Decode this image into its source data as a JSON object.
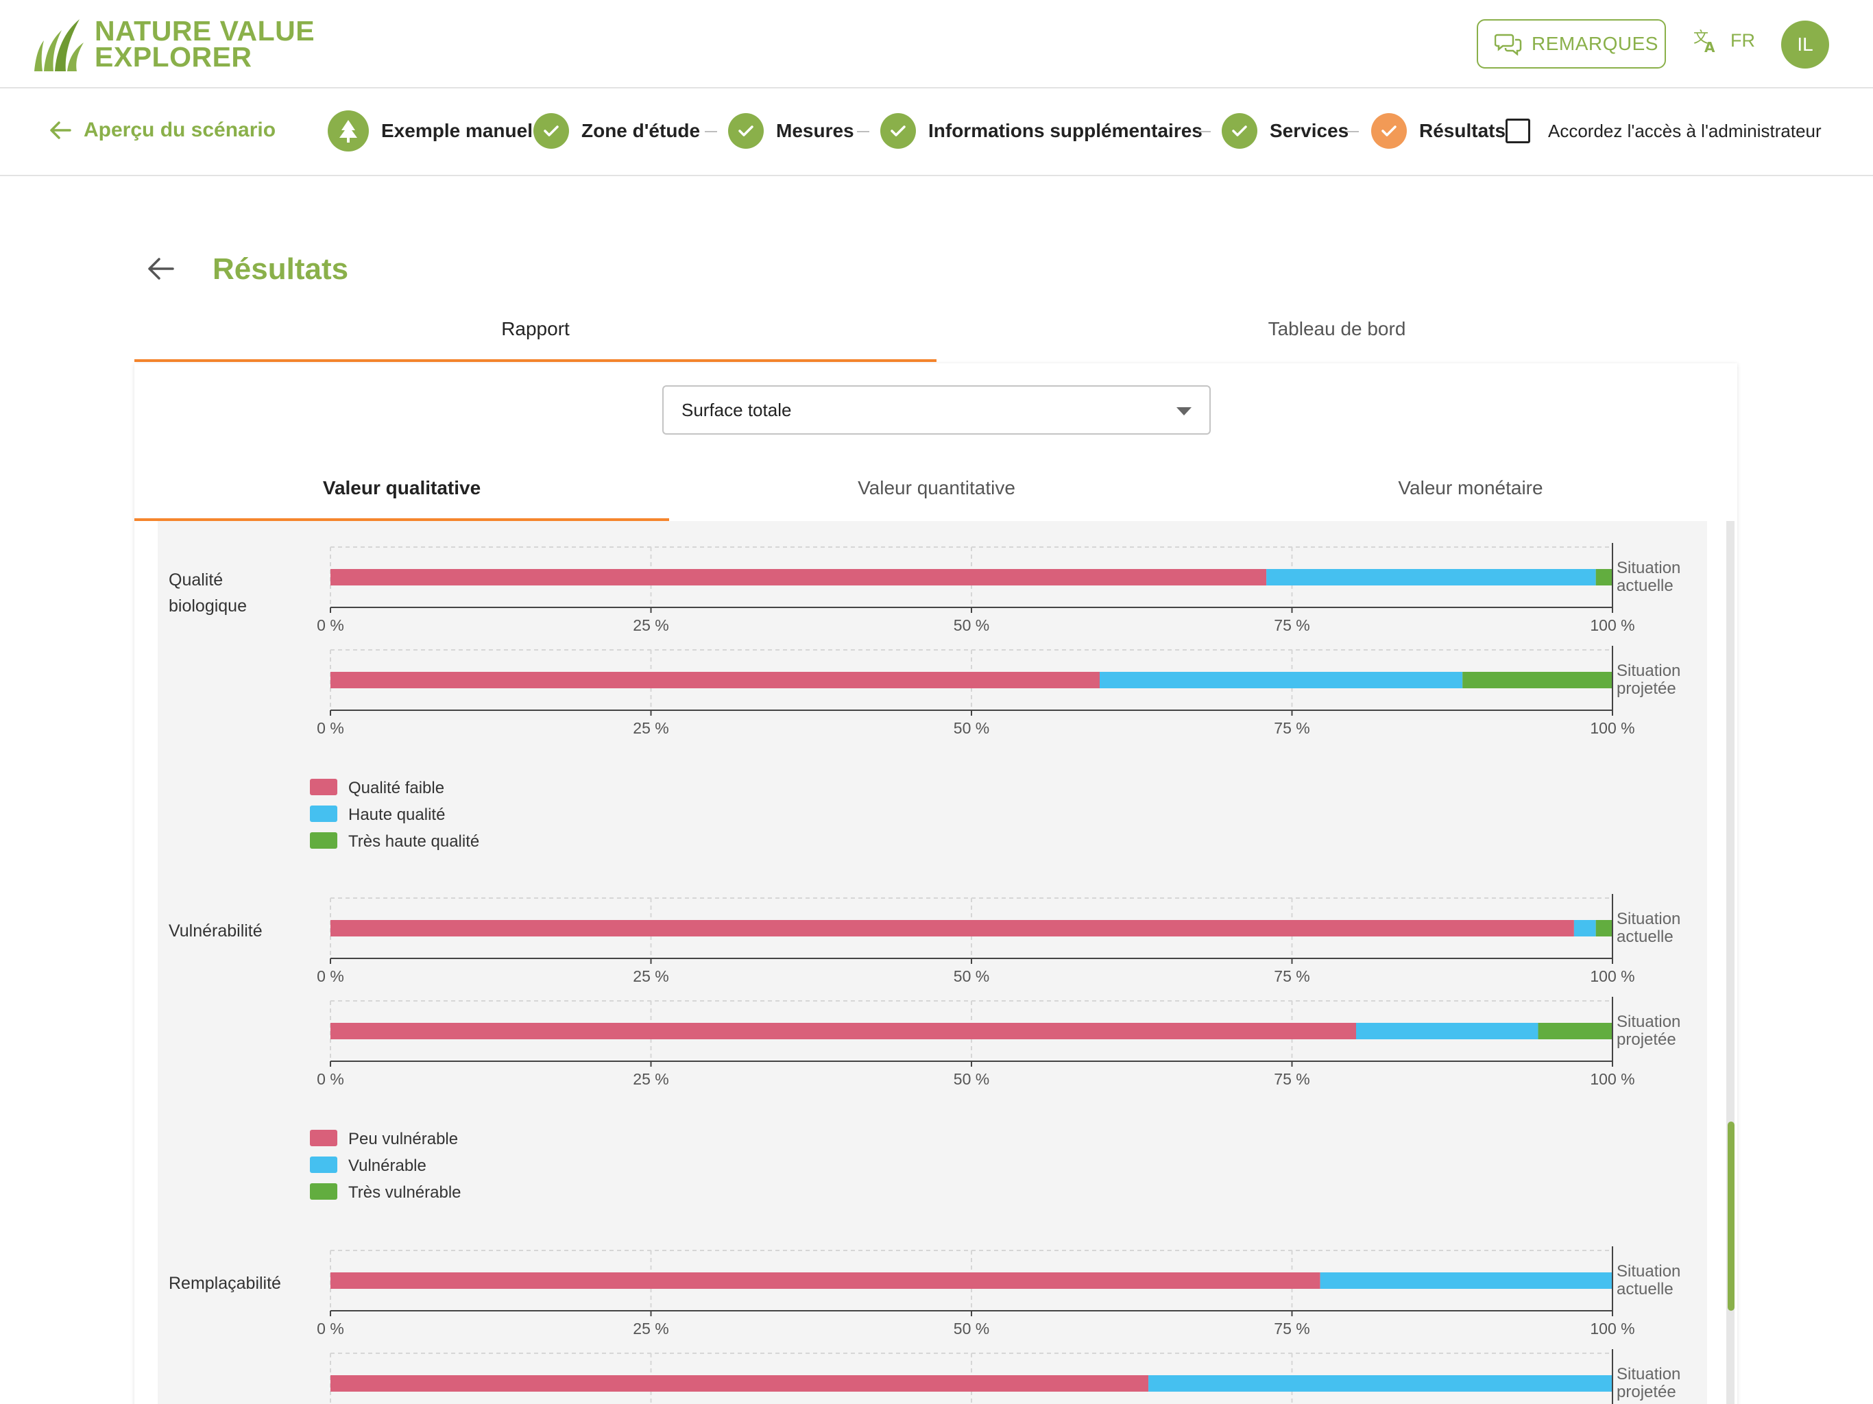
{
  "header": {
    "logo_line1": "NATURE VALUE",
    "logo_line2": "EXPLORER",
    "remarques_label": "REMARQUES",
    "language": "FR",
    "avatar_initials": "IL"
  },
  "stepper": {
    "back_label": "Aperçu du scénario",
    "steps": [
      {
        "label": "Exemple manuel",
        "state": "tree"
      },
      {
        "label": "Zone d'étude",
        "state": "done"
      },
      {
        "label": "Mesures",
        "state": "done"
      },
      {
        "label": "Informations supplémentaires",
        "state": "done"
      },
      {
        "label": "Services",
        "state": "done"
      },
      {
        "label": "Résultats",
        "state": "current"
      }
    ],
    "admin_label": "Accordez l'accès à l'administrateur"
  },
  "page": {
    "title": "Résultats",
    "tabs": [
      "Rapport",
      "Tableau de bord"
    ],
    "active_tab": "Rapport",
    "select_value": "Surface totale",
    "subtabs": [
      "Valeur qualitative",
      "Valeur quantitative",
      "Valeur monétaire"
    ],
    "active_subtab": "Valeur qualitative"
  },
  "colors": {
    "accent": "#8ab04a",
    "orange": "#f5852d",
    "red": "#d9607a",
    "blue": "#45c0f0",
    "green": "#62ad3f"
  },
  "chart_data": [
    {
      "type": "bar",
      "title": "Qualité biologique",
      "orientation": "horizontal-stacked",
      "categories": [
        "Situation actuelle",
        "Situation projetée"
      ],
      "series": [
        {
          "name": "Qualité faible",
          "values": [
            73,
            60
          ]
        },
        {
          "name": "Haute qualité",
          "values": [
            25.7,
            28.3
          ]
        },
        {
          "name": "Très haute qualité",
          "values": [
            1.3,
            11.7
          ]
        }
      ],
      "ticks": [
        "0 %",
        "25 %",
        "50 %",
        "75 %",
        "100 %"
      ],
      "xlim": [
        0,
        100
      ]
    },
    {
      "type": "bar",
      "title": "Vulnérabilité",
      "orientation": "horizontal-stacked",
      "categories": [
        "Situation actuelle",
        "Situation projetée"
      ],
      "series": [
        {
          "name": "Peu vulnérable",
          "values": [
            97,
            80
          ]
        },
        {
          "name": "Vulnérable",
          "values": [
            1.7,
            14.2
          ]
        },
        {
          "name": "Très vulnérable",
          "values": [
            1.3,
            5.8
          ]
        }
      ],
      "ticks": [
        "0 %",
        "25 %",
        "50 %",
        "75 %",
        "100 %"
      ],
      "xlim": [
        0,
        100
      ]
    },
    {
      "type": "bar",
      "title": "Remplaçabilité",
      "orientation": "horizontal-stacked",
      "categories": [
        "Situation actuelle",
        "Situation projetée"
      ],
      "series": [
        {
          "name": "",
          "values": [
            77.2,
            63.8
          ]
        },
        {
          "name": "",
          "values": [
            22.8,
            36.2
          ]
        }
      ],
      "ticks": [
        "0 %",
        "25 %",
        "50 %",
        "75 %",
        "100 %"
      ],
      "xlim": [
        0,
        100
      ]
    }
  ]
}
